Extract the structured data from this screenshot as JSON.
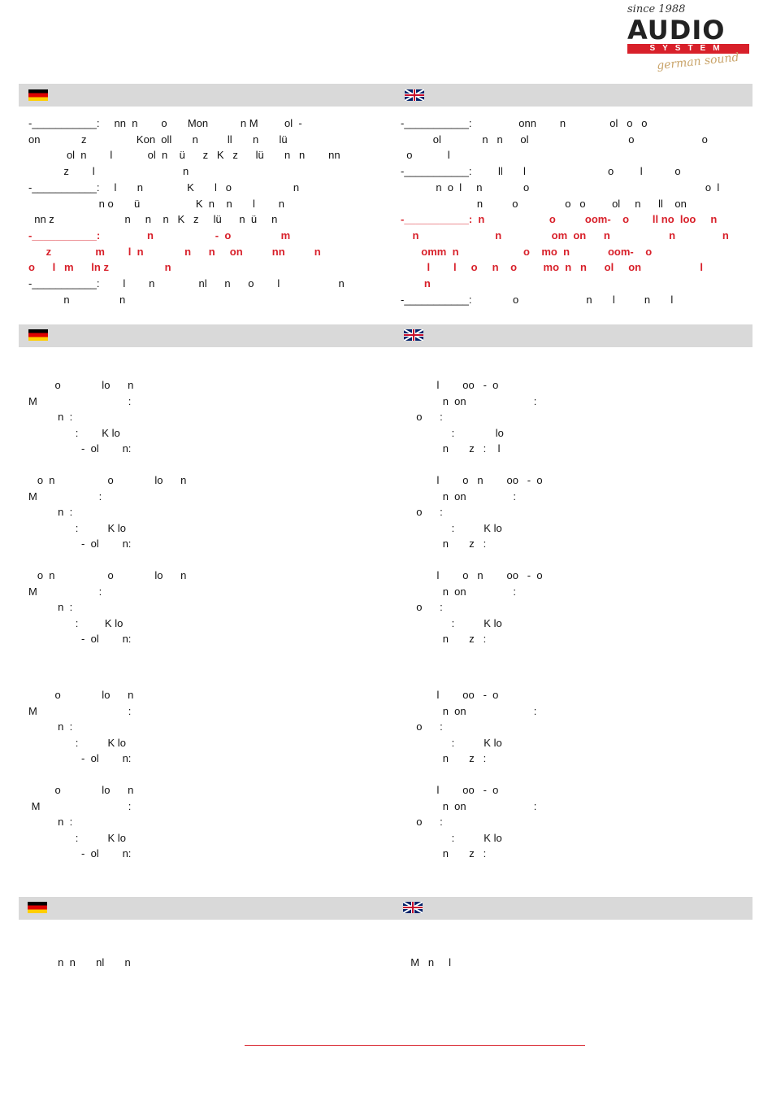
{
  "logo": {
    "since": "since 1988",
    "brand": "AUDIO",
    "brand_sub": "SYSTEM",
    "tagline": "german sound"
  },
  "de_top": [
    {
      "text": "-___________:     nn  n        o       Mon           n M         ol  -",
      "red": false
    },
    {
      "text": "on              z                 Kon  oll       n          ll       n       lü",
      "red": false
    },
    {
      "text": "             ol  n        l            ol  n    ü      z   K   z      lü       n   n        nn",
      "red": false
    },
    {
      "text": "            z        l                              n",
      "red": false
    },
    {
      "text": "-___________:     l       n               K       l   o                     n",
      "red": false
    },
    {
      "text": "                        n o       ü                   K  n    n       l        n",
      "red": false
    },
    {
      "text": "  nn z                        n     n    n   K   z     lü      n  ü     n",
      "red": false
    },
    {
      "text": "-___________:                n                     -  o                 m",
      "red": true
    },
    {
      "text": "      z               m        l  n              n      n     on          nn          n",
      "red": true
    },
    {
      "text": "o      l   m      ln z                   n",
      "red": true
    },
    {
      "text": "-___________:        l        n               nl      n      o        l                    n",
      "red": false
    },
    {
      "text": "            n                 n",
      "red": false
    }
  ],
  "en_top": [
    {
      "text": "-___________:                onn        n               ol   o   o",
      "red": false
    },
    {
      "text": "           ol              n   n      ol                                  o                       o",
      "red": false
    },
    {
      "text": "  o            l",
      "red": false
    },
    {
      "text": "-___________:         ll       l                            o         l           o",
      "red": false
    },
    {
      "text": "            n  o  l     n              o                                                            o  l",
      "red": false
    },
    {
      "text": "                          n          o                o   o         ol     n      ll    on",
      "red": false
    },
    {
      "text": "-___________:  n                      o          oom-    o        ll no  loo     n",
      "red": true
    },
    {
      "text": "    n                          n                 om  on      n                    n                n",
      "red": true
    },
    {
      "text": "       omm  n                      o    mo  n             oom-    o",
      "red": true
    },
    {
      "text": "         l        l     o     n    o         mo  n   n      ol     on                    l",
      "red": true
    },
    {
      "text": "        n",
      "red": true
    },
    {
      "text": "-___________:              o                       n       l          n       l",
      "red": false
    }
  ],
  "de_mid": [
    {
      "text": "         o              lo      n"
    },
    {
      "text": "M                               :"
    },
    {
      "text": "          n  :"
    },
    {
      "text": "                :        K lo"
    },
    {
      "text": "                  -  ol        n:"
    },
    {
      "text": ""
    },
    {
      "text": "   o  n                  o              lo      n"
    },
    {
      "text": "M                     :"
    },
    {
      "text": "          n  :"
    },
    {
      "text": "                :          K lo"
    },
    {
      "text": "                  -  ol        n:"
    },
    {
      "text": ""
    },
    {
      "text": "   o  n                  o              lo      n"
    },
    {
      "text": "M                     :"
    },
    {
      "text": "          n  :"
    },
    {
      "text": "                :         K lo"
    },
    {
      "text": "                  -  ol        n:"
    }
  ],
  "en_mid": [
    {
      "text": "         l        oo   -  o"
    },
    {
      "text": "           n  on                       :"
    },
    {
      "text": "  o      :"
    },
    {
      "text": "              :              lo"
    },
    {
      "text": "           n       z   :    l"
    },
    {
      "text": ""
    },
    {
      "text": "         l        o   n        oo   -  o"
    },
    {
      "text": "           n  on                :"
    },
    {
      "text": "  o      :"
    },
    {
      "text": "              :          K lo"
    },
    {
      "text": "           n       z   :"
    },
    {
      "text": ""
    },
    {
      "text": "         l        o   n        oo   -  o"
    },
    {
      "text": "           n  on                :"
    },
    {
      "text": "  o      :"
    },
    {
      "text": "              :          K lo"
    },
    {
      "text": "           n       z   :"
    }
  ],
  "de_mid2": [
    {
      "text": "         o              lo      n"
    },
    {
      "text": "M                               :"
    },
    {
      "text": "          n  :"
    },
    {
      "text": "                :          K lo"
    },
    {
      "text": "                  -  ol        n:"
    },
    {
      "text": ""
    },
    {
      "text": "         o              lo      n"
    },
    {
      "text": " M                              :"
    },
    {
      "text": "          n  :"
    },
    {
      "text": "                :          K lo"
    },
    {
      "text": "                  -  ol        n:"
    }
  ],
  "en_mid2": [
    {
      "text": "         l        oo   -  o"
    },
    {
      "text": "           n  on                       :"
    },
    {
      "text": "  o      :"
    },
    {
      "text": "              :          K lo"
    },
    {
      "text": "           n       z   :"
    },
    {
      "text": ""
    },
    {
      "text": "         l        oo   -  o"
    },
    {
      "text": "           n  on                       :"
    },
    {
      "text": "  o      :"
    },
    {
      "text": "              :          K lo"
    },
    {
      "text": "           n       z   :"
    }
  ],
  "de_bottom": "          n  n       nl       n",
  "en_bottom": "  M   n     l"
}
